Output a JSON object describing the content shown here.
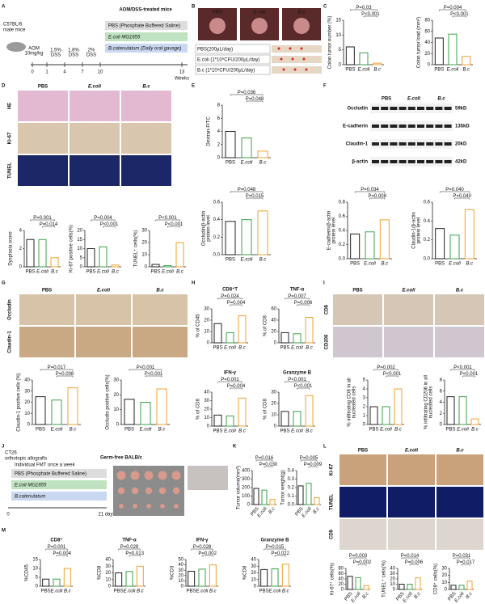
{
  "colors": [
    "#222222",
    "#3aa34a",
    "#f0a030"
  ],
  "panel_letters": [
    "A",
    "B",
    "C",
    "D",
    "E",
    "F",
    "G",
    "H",
    "I",
    "J",
    "K",
    "L",
    "M"
  ],
  "panel_a": {
    "strain": [
      "C57BL/6",
      "male mice"
    ],
    "title": "AOM/DSS-treated mice",
    "aom": [
      "AOM",
      "10mg/kg"
    ],
    "dss": [
      [
        "1.5%",
        "DSS"
      ],
      [
        "1.8%",
        "DSS"
      ],
      [
        "2%",
        "DSS"
      ]
    ],
    "weeks": [
      0,
      1,
      4,
      7,
      10,
      13
    ],
    "unit": "Weeks",
    "groups": [
      "PBS (Phosphate Buffered Saline)",
      "E.coli MG1655",
      "B.catenulatum (Daily oral gavage)"
    ]
  },
  "panel_b": {
    "images": [
      "PBS",
      "E.coli",
      "B.c"
    ],
    "rows": [
      "PBS(200μL/day)",
      "E.coli (1*10⁹CFU/200μL/day)",
      "B.c (1*10⁹CFU/200μL/day)"
    ]
  },
  "panel_d": {
    "columns": [
      "PBS",
      "E.coli",
      "B.c"
    ],
    "rows": [
      "HE",
      "Ki-67",
      "TUNEL"
    ]
  },
  "panel_f": {
    "columns": [
      "PBS",
      "E.coli",
      "B.c"
    ],
    "bands": [
      "Occludin",
      "E-cadherin",
      "Claudin-1",
      "β-actin"
    ],
    "sizes": [
      "59kD",
      "135kD",
      "20kD",
      "42kD"
    ]
  },
  "panel_g": {
    "columns": [
      "PBS",
      "E.coli",
      "B.c"
    ],
    "rows": [
      "Occludin",
      "Claudin-1"
    ]
  },
  "panel_i": {
    "columns": [
      "PBS",
      "E.coli",
      "B.c"
    ],
    "rows": [
      "CD8",
      "CD206"
    ]
  },
  "panel_j": {
    "model": [
      "CT26",
      "orthotopic allografts"
    ],
    "host": "Germ-free BALB/c",
    "fmt": "Individual FMT once a week",
    "groups": [
      "PBS (Phosphate Buffered Saline)",
      "E.coli MG1655",
      "B.catenulatum"
    ],
    "start": "0",
    "end": "21 days"
  },
  "panel_l": {
    "columns": [
      "PBS",
      "E.coli",
      "B.c"
    ],
    "rows": [
      "Ki-67",
      "TUNEL",
      "CD8"
    ]
  },
  "charts": [
    {
      "type": "bar",
      "ylabel": "Colon tumor number (%)",
      "categories": [
        "PBS",
        "E.coli",
        "B.c"
      ],
      "values": [
        6,
        4,
        0.5
      ],
      "ylim": [
        0,
        15
      ],
      "yticks": [
        0,
        5,
        10,
        15
      ],
      "pvalues": [
        "P=0.03",
        "P<0.001"
      ]
    },
    {
      "type": "bar",
      "ylabel": "Colon tumor load (mm²)",
      "categories": [
        "PBS",
        "E.coli",
        "B.c"
      ],
      "values": [
        48,
        55,
        15
      ],
      "ylim": [
        0,
        80
      ],
      "yticks": [
        0,
        20,
        40,
        60,
        80
      ],
      "pvalues": [
        "P=0.004",
        "P<0.001"
      ]
    },
    {
      "type": "bar",
      "ylabel": "Dysplasia score",
      "categories": [
        "PBS",
        "E.coli",
        "B.c"
      ],
      "values": [
        3,
        3,
        1
      ],
      "ylim": [
        0,
        4
      ],
      "yticks": [
        0,
        2,
        4
      ],
      "pvalues": [
        "P=0.001",
        "P=0.014"
      ]
    },
    {
      "type": "bar",
      "ylabel": "Ki-67 positive cells(%)",
      "categories": [
        "PBS",
        "E.coli",
        "B.c"
      ],
      "values": [
        10,
        11,
        1
      ],
      "ylim": [
        0,
        20
      ],
      "yticks": [
        0,
        5,
        10,
        15,
        20
      ],
      "pvalues": [
        "P=0.004",
        "P<0.001"
      ]
    },
    {
      "type": "bar",
      "ylabel": "TUNEL⁺ cells(%)",
      "categories": [
        "PBS",
        "E.coli",
        "B.c"
      ],
      "values": [
        2,
        1,
        20
      ],
      "ylim": [
        0,
        30
      ],
      "yticks": [
        0,
        10,
        20,
        30
      ],
      "pvalues": [
        "P<0.001",
        "P<0.001"
      ]
    },
    {
      "type": "bar",
      "ylabel": "Dextran-FITC",
      "categories": [
        "PBS",
        "E.coli",
        "B.c"
      ],
      "values": [
        4,
        3,
        1
      ],
      "ylim": [
        0,
        8
      ],
      "yticks": [
        0,
        2,
        4,
        6,
        8
      ],
      "pvalues": [
        "P=0.036",
        "P=0.048"
      ]
    },
    {
      "type": "bar",
      "ylabel": [
        "Occludin/β-actin",
        "protein level"
      ],
      "categories": [
        "PBS",
        "E.coli",
        "B.c"
      ],
      "values": [
        0.38,
        0.4,
        0.5
      ],
      "ylim": [
        0,
        0.6
      ],
      "yticks": [
        {
          "value": 0,
          "label": "0.0"
        },
        0.2,
        0.4,
        0.6
      ],
      "pvalues": [
        "P=0.048",
        "P=0.015"
      ]
    },
    {
      "type": "bar",
      "ylabel": [
        "E-cadherin/β-actin",
        "protein level"
      ],
      "categories": [
        "PBS",
        "E.coli",
        "B.c"
      ],
      "values": [
        0.35,
        0.38,
        0.55
      ],
      "ylim": [
        0,
        0.8
      ],
      "yticks": [
        {
          "value": 0,
          "label": "0.0"
        },
        0.2,
        0.4,
        0.6,
        0.8
      ],
      "pvalues": [
        "P=0.034",
        "P=0.008"
      ]
    },
    {
      "type": "bar",
      "ylabel": [
        "Claudin-1/β-actin",
        "protein level"
      ],
      "categories": [
        "PBS",
        "E.coli",
        "B.c"
      ],
      "values": [
        0.32,
        0.25,
        0.52
      ],
      "ylim": [
        0,
        0.6
      ],
      "yticks": [
        {
          "value": 0,
          "label": "0.0"
        },
        0.2,
        0.4,
        0.6
      ],
      "pvalues": [
        "P=0.040",
        "P=0.040"
      ]
    },
    {
      "type": "bar",
      "ylabel": "Claudin-1 positive cells (%)",
      "categories": [
        "PBS",
        "E.coli",
        "B.c"
      ],
      "values": [
        25,
        22,
        33
      ],
      "ylim": [
        0,
        40
      ],
      "yticks": [
        0,
        10,
        20,
        30,
        40
      ],
      "pvalues": [
        "P=0.017",
        "P=0.008"
      ]
    },
    {
      "type": "bar",
      "ylabel": "Occludin positive cells(%)",
      "categories": [
        "PBS",
        "E.coli",
        "B.c"
      ],
      "values": [
        17,
        15,
        24
      ],
      "ylim": [
        0,
        30
      ],
      "yticks": [
        0,
        10,
        20,
        30
      ],
      "pvalues": [
        "P<0.001",
        "P<0.001"
      ]
    },
    {
      "type": "bar",
      "title": "CD8⁺T",
      "ylabel": "% of CD45",
      "categories": [
        "PBS",
        "E.coli",
        "B.c"
      ],
      "values": [
        17,
        9,
        24
      ],
      "ylim": [
        0,
        30
      ],
      "yticks": [
        0,
        10,
        20,
        30
      ],
      "pvalues": [
        "P=0.024",
        "P=0.004"
      ]
    },
    {
      "type": "bar",
      "title": "TNF-α",
      "ylabel": "% of CD8",
      "categories": [
        "PBS",
        "E.coli",
        "B.c"
      ],
      "values": [
        18,
        16,
        45
      ],
      "ylim": [
        0,
        60
      ],
      "yticks": [
        0,
        20,
        40,
        60
      ],
      "pvalues": [
        "P=0.007",
        "P=0.006"
      ]
    },
    {
      "type": "bar",
      "title": "IFN-γ",
      "ylabel": "% of CD8",
      "categories": [
        "PBS",
        "E.coli",
        "B.c"
      ],
      "values": [
        13,
        12,
        33
      ],
      "ylim": [
        0,
        40
      ],
      "yticks": [
        0,
        10,
        20,
        30,
        40
      ],
      "pvalues": [
        "P=0.001",
        "P=0.004"
      ]
    },
    {
      "type": "bar",
      "title": "Granzyme B",
      "ylabel": "% of CD8",
      "categories": [
        "PBS",
        "E.coli",
        "B.c"
      ],
      "values": [
        13,
        13,
        27
      ],
      "ylim": [
        0,
        30
      ],
      "yticks": [
        0,
        10,
        20,
        30
      ],
      "pvalues": [
        "P<0.001",
        "P<0.001"
      ]
    },
    {
      "type": "bar",
      "ylabel": [
        "% infiltrating CD8 in all",
        "nucleated cells"
      ],
      "categories": [
        "PBS",
        "E.coli",
        "B.c"
      ],
      "values": [
        2,
        2,
        4
      ],
      "ylim": [
        0,
        5
      ],
      "yticks": [
        0,
        1,
        2,
        3,
        4,
        5
      ],
      "pvalues": [
        "P=0.002",
        "P<0.001"
      ]
    },
    {
      "type": "bar",
      "ylabel": [
        "% infiltrating CD206 in all",
        "nucleated cells"
      ],
      "categories": [
        "PBS",
        "E.coli",
        "B.c"
      ],
      "values": [
        5,
        5,
        1
      ],
      "ylim": [
        0,
        8
      ],
      "yticks": [
        0,
        2,
        4,
        6,
        8
      ],
      "pvalues": [
        "P<0.001",
        "P<0.001"
      ]
    },
    {
      "type": "bar",
      "ylabel": "Tumor volume(mm³)",
      "categories": [
        "PBS",
        "E.coli",
        "B.c"
      ],
      "values": [
        190,
        170,
        60
      ],
      "ylim": [
        0,
        400
      ],
      "yticks": [
        0,
        100,
        200,
        300,
        400
      ],
      "pvalues": [
        "P=0.016",
        "P=0.030"
      ]
    },
    {
      "type": "bar",
      "ylabel": "Tumor weight(g)",
      "categories": [
        "PBS",
        "E.coli",
        "B.c"
      ],
      "values": [
        0.22,
        0.25,
        0.08
      ],
      "ylim": [
        0,
        0.4
      ],
      "yticks": [
        {
          "value": 0,
          "label": "0.0"
        },
        0.1,
        0.2,
        0.3,
        0.4
      ],
      "pvalues": [
        "P=0.005",
        "P=0.009"
      ]
    },
    {
      "type": "bar",
      "ylabel": "Ki-67⁺ cells(%)",
      "categories": [
        "PBS",
        "E.coli",
        "B.c"
      ],
      "values": [
        50,
        45,
        15
      ],
      "ylim": [
        0,
        80
      ],
      "yticks": [
        0,
        20,
        40,
        60,
        80
      ],
      "pvalues": [
        "P=0.003",
        "P=0.002"
      ]
    },
    {
      "type": "bar",
      "ylabel": "TUNEL⁺ cells(%)",
      "categories": [
        "PBS",
        "E.coli",
        "B.c"
      ],
      "values": [
        10,
        10,
        22
      ],
      "ylim": [
        0,
        40
      ],
      "yticks": [
        0,
        10,
        20,
        30,
        40
      ],
      "pvalues": [
        "P=0.014",
        "P=0.006"
      ]
    },
    {
      "type": "bar",
      "ylabel": "CD8⁺ cells(%)",
      "categories": [
        "PBS",
        "E.coli",
        "B.c"
      ],
      "values": [
        6,
        6,
        12
      ],
      "ylim": [
        0,
        30
      ],
      "yticks": [
        0,
        10,
        20,
        30
      ],
      "pvalues": [
        "P=0.031",
        "P=0.017"
      ]
    },
    {
      "type": "bar",
      "title": "CD8⁺",
      "ylabel": "%CD45",
      "categories": [
        "PBS",
        "E.coli",
        "B.c"
      ],
      "values": [
        4,
        4,
        10
      ],
      "ylim": [
        0,
        15
      ],
      "yticks": [
        0,
        5,
        10,
        15
      ],
      "pvalues": [
        "P=0.001",
        "P=0.004"
      ]
    },
    {
      "type": "bar",
      "title": "TNF-α",
      "ylabel": "%CD8",
      "categories": [
        "PBS",
        "E.coli",
        "B.c"
      ],
      "values": [
        20,
        22,
        30
      ],
      "ylim": [
        0,
        40
      ],
      "yticks": [
        0,
        10,
        20,
        30,
        40
      ],
      "pvalues": [
        "P=0.029",
        "P=0.013"
      ]
    },
    {
      "type": "bar",
      "title": "IFN-γ",
      "ylabel": "%CD3",
      "categories": [
        "PBS",
        "E.coli",
        "B.c"
      ],
      "values": [
        28,
        32,
        40
      ],
      "ylim": [
        0,
        50
      ],
      "yticks": [
        0,
        10,
        20,
        30,
        40,
        50
      ],
      "pvalues": [
        "P=0.028",
        "P=0.002"
      ]
    },
    {
      "type": "bar",
      "title": "Granzyme B",
      "ylabel": "%CD8",
      "categories": [
        "PBS",
        "E.coli",
        "B.c"
      ],
      "values": [
        25,
        26,
        33
      ],
      "ylim": [
        0,
        40
      ],
      "yticks": [
        0,
        10,
        20,
        30,
        40
      ],
      "pvalues": [
        "P=0.015",
        "P=0.022"
      ]
    }
  ]
}
